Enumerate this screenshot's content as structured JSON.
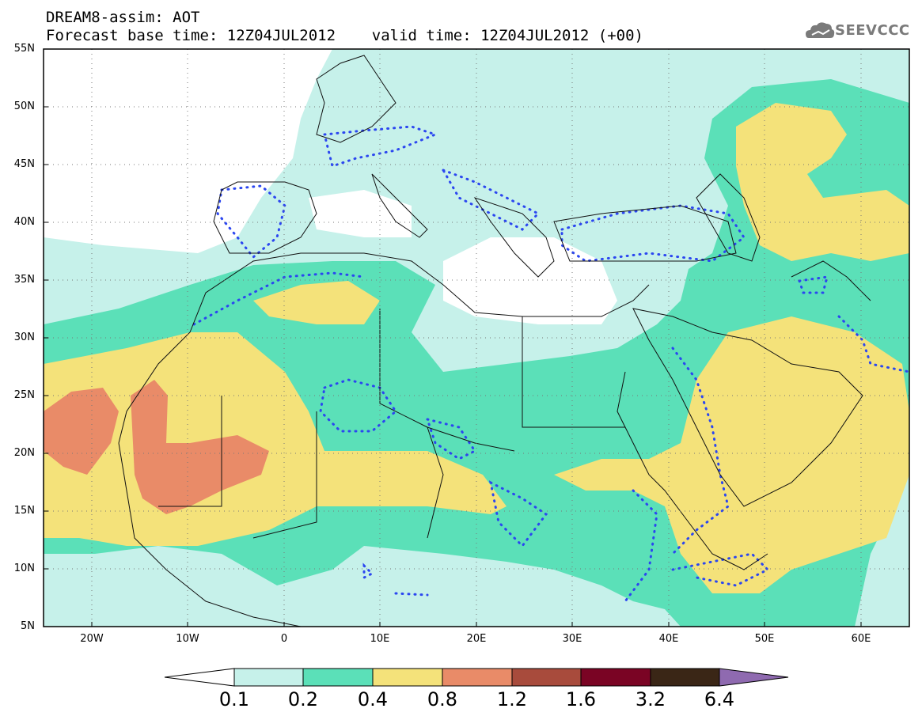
{
  "header": {
    "title_line1": "DREAM8-assim: AOT",
    "title_line2": "Forecast base time: 12Z04JUL2012    valid time: 12Z04JUL2012 (+00)"
  },
  "logo": {
    "text": "SEEVCCC",
    "icon": "cloud-logo-icon"
  },
  "map": {
    "variable": "AOT",
    "lat_range": [
      5,
      55
    ],
    "lon_range": [
      -25,
      65
    ],
    "lat_labels": [
      "55N",
      "50N",
      "45N",
      "40N",
      "35N",
      "30N",
      "25N",
      "20N",
      "15N",
      "10N",
      "5N"
    ],
    "lon_labels": [
      "20W",
      "10W",
      "0",
      "10E",
      "20E",
      "30E",
      "40E",
      "50E",
      "60E"
    ],
    "projection": "cylindrical equidistant",
    "grid": "dotted"
  },
  "colorbar": {
    "thresholds": [
      "0.1",
      "0.2",
      "0.4",
      "0.8",
      "1.2",
      "1.6",
      "3.2",
      "6.4"
    ],
    "colors": [
      "#ffffff",
      "#c6f1ea",
      "#5be0b8",
      "#f4e27a",
      "#e98b68",
      "#a84b3c",
      "#7a0424",
      "#3a2616",
      "#8f6ab0"
    ]
  }
}
